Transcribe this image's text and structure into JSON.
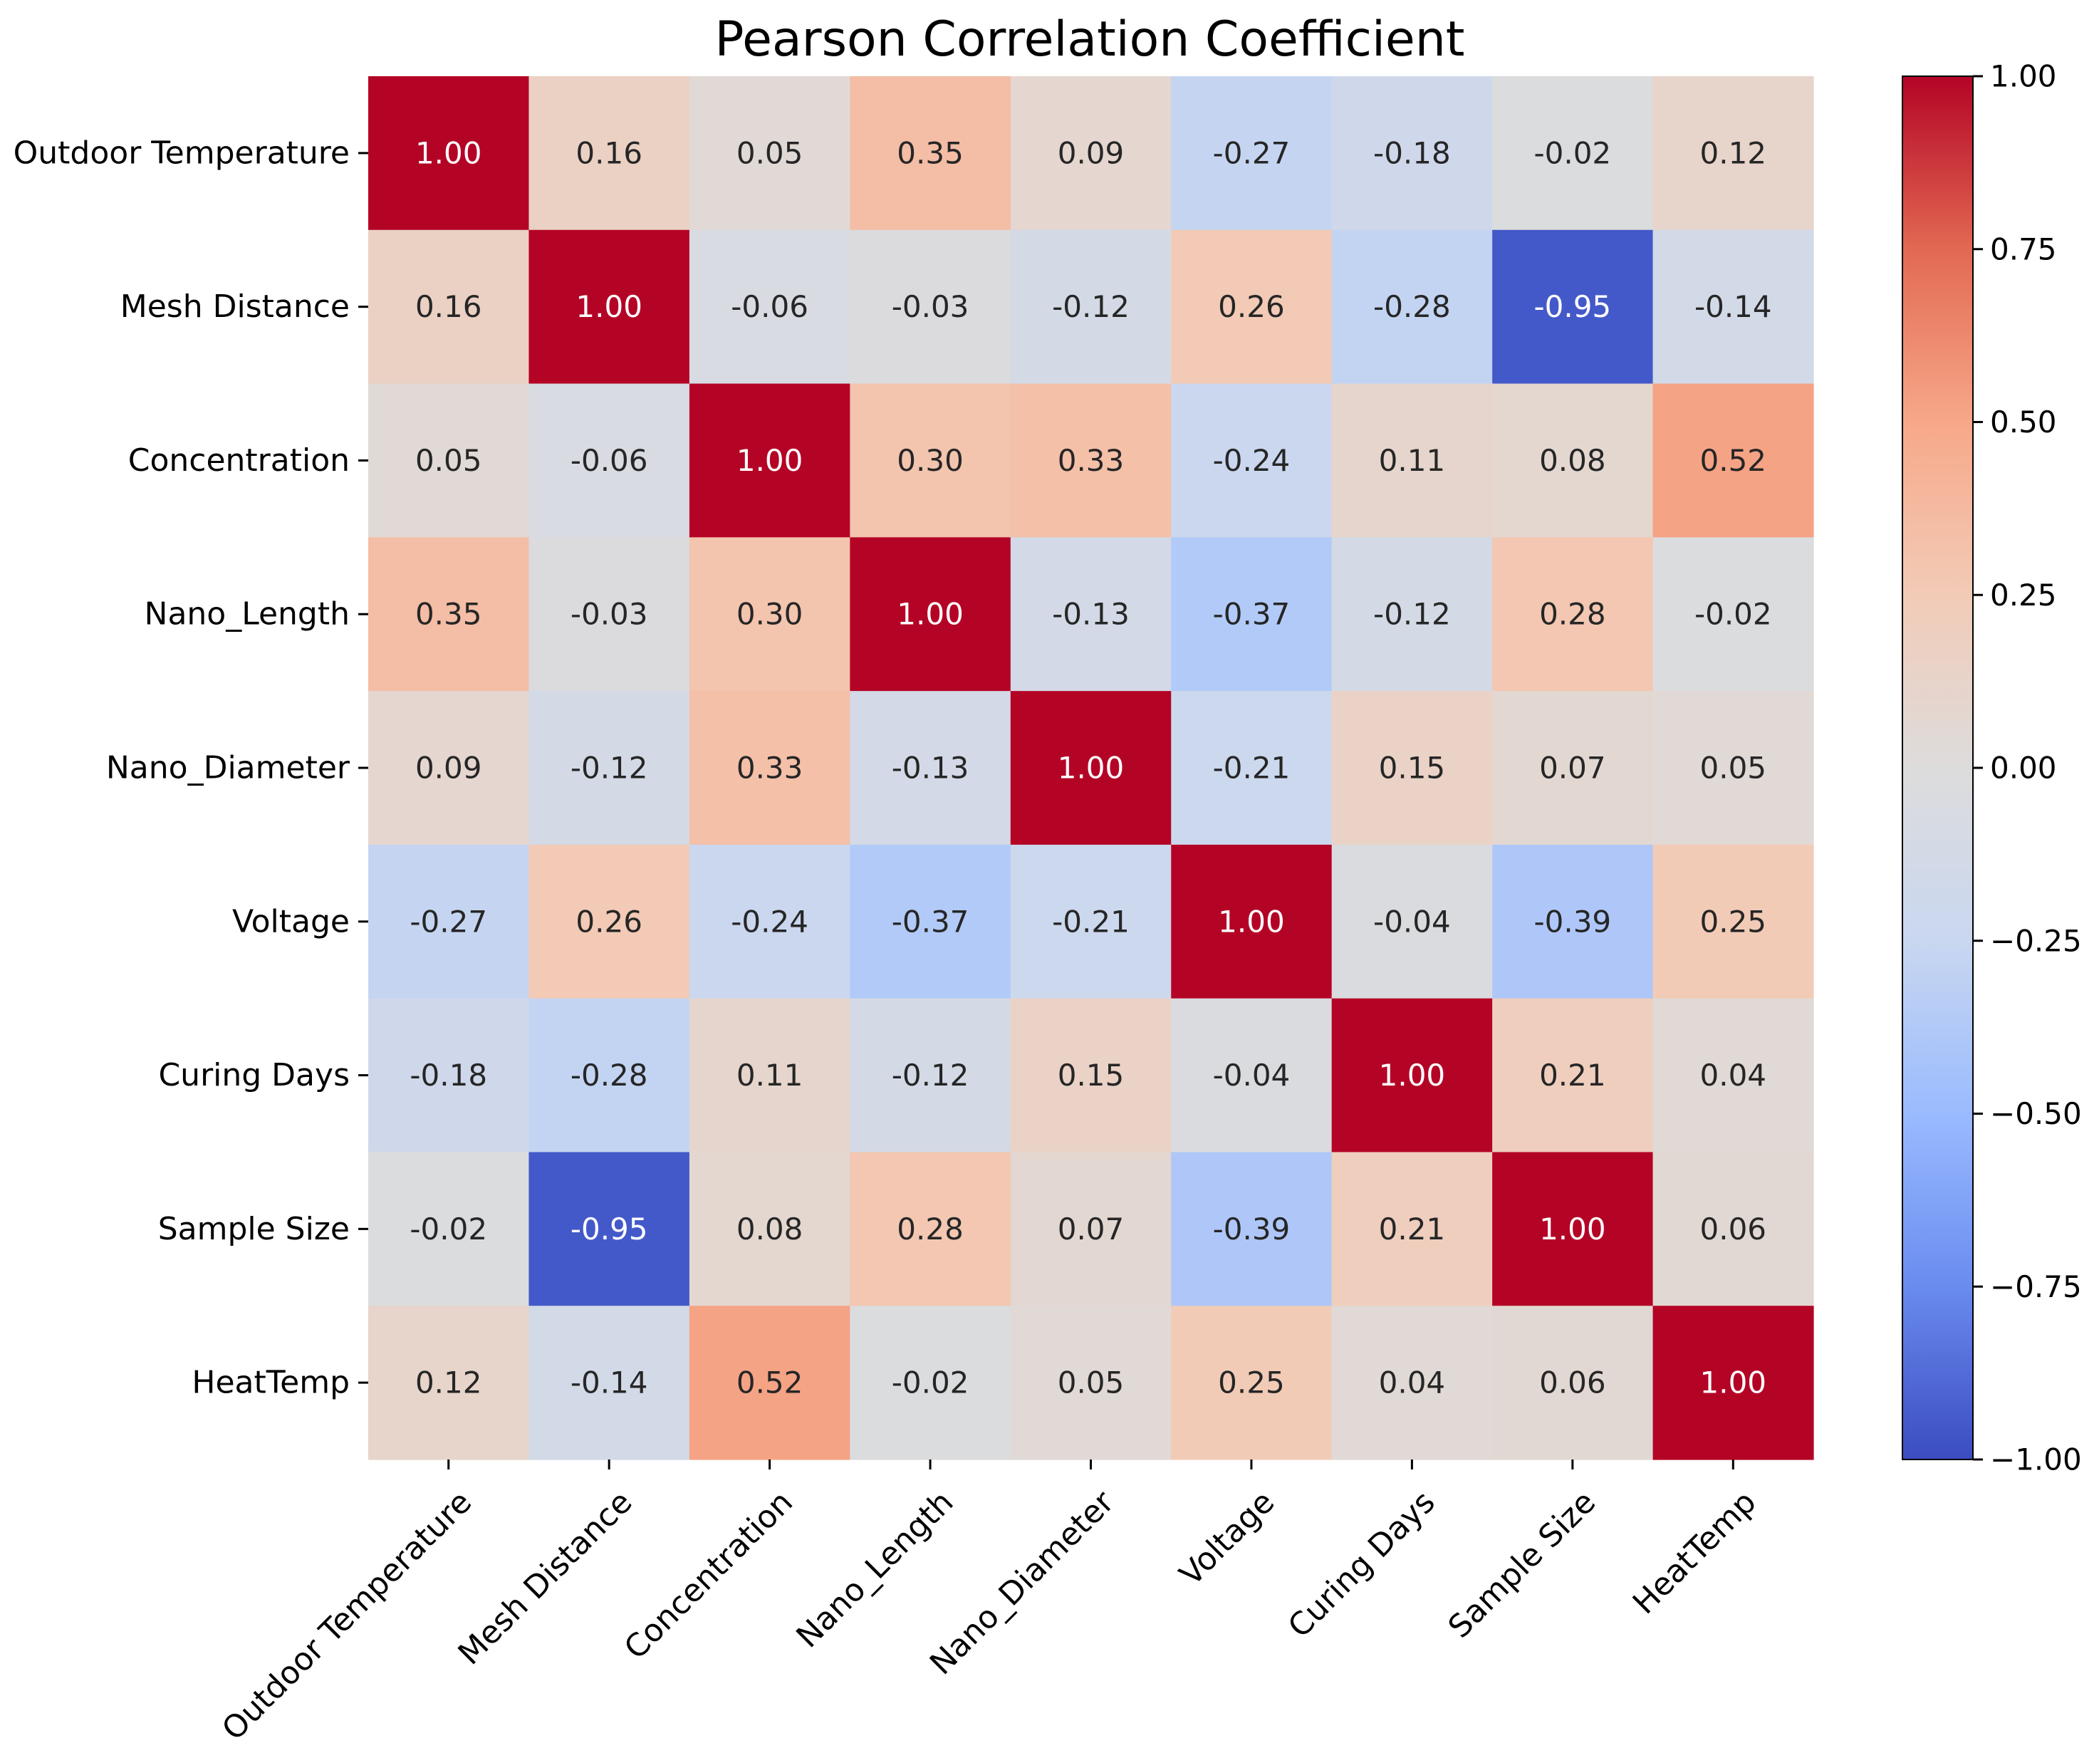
{
  "chart_data": {
    "type": "heatmap",
    "title": "Pearson Correlation Coefficient",
    "xlabel": "",
    "ylabel": "",
    "rows": [
      "Outdoor Temperature",
      "Mesh Distance",
      "Concentration",
      "Nano_Length",
      "Nano_Diameter",
      "Voltage",
      "Curing Days",
      "Sample Size",
      "HeatTemp"
    ],
    "columns": [
      "Outdoor Temperature",
      "Mesh Distance",
      "Concentration",
      "Nano_Length",
      "Nano_Diameter",
      "Voltage",
      "Curing Days",
      "Sample Size",
      "HeatTemp"
    ],
    "values": [
      [
        1.0,
        0.16,
        0.05,
        0.35,
        0.09,
        -0.27,
        -0.18,
        -0.02,
        0.12
      ],
      [
        0.16,
        1.0,
        -0.06,
        -0.03,
        -0.12,
        0.26,
        -0.28,
        -0.95,
        -0.14
      ],
      [
        0.05,
        -0.06,
        1.0,
        0.3,
        0.33,
        -0.24,
        0.11,
        0.08,
        0.52
      ],
      [
        0.35,
        -0.03,
        0.3,
        1.0,
        -0.13,
        -0.37,
        -0.12,
        0.28,
        -0.02
      ],
      [
        0.09,
        -0.12,
        0.33,
        -0.13,
        1.0,
        -0.21,
        0.15,
        0.07,
        0.05
      ],
      [
        -0.27,
        0.26,
        -0.24,
        -0.37,
        -0.21,
        1.0,
        -0.04,
        -0.39,
        0.25
      ],
      [
        -0.18,
        -0.28,
        0.11,
        -0.12,
        0.15,
        -0.04,
        1.0,
        0.21,
        0.04
      ],
      [
        -0.02,
        -0.95,
        0.08,
        0.28,
        0.07,
        -0.39,
        0.21,
        1.0,
        0.06
      ],
      [
        0.12,
        -0.14,
        0.52,
        -0.02,
        0.05,
        0.25,
        0.04,
        0.06,
        1.0
      ]
    ],
    "value_format": "0.00",
    "vmin": -1.0,
    "vmax": 1.0,
    "colormap": "coolwarm",
    "colormap_stops": [
      "#3b4cc0",
      "#6a8bef",
      "#9abbff",
      "#c9d7f0",
      "#dddcdc",
      "#f2cbb7",
      "#f7a889",
      "#e26952",
      "#b40426"
    ],
    "colorbar": {
      "ticks": [
        "-1.00",
        "-0.75",
        "-0.50",
        "-0.25",
        "0.00",
        "0.25",
        "0.50",
        "0.75",
        "1.00"
      ],
      "tick_values": [
        -1.0,
        -0.75,
        -0.5,
        -0.25,
        0.0,
        0.25,
        0.5,
        0.75,
        1.0
      ]
    },
    "grid": false,
    "legend": "colorbar-right"
  }
}
